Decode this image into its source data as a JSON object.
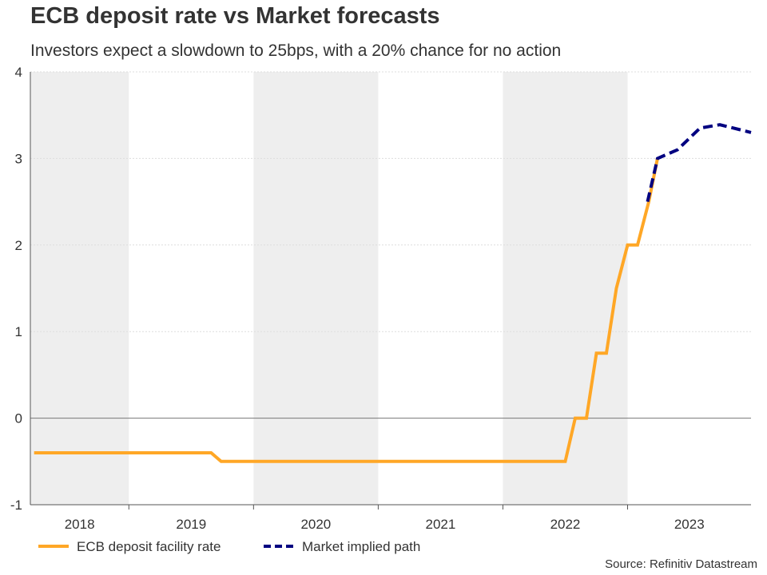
{
  "chart_data": {
    "type": "line",
    "title": "ECB deposit rate vs Market forecasts",
    "subtitle": "Investors expect a slowdown to 25bps, with a 20% chance for no action",
    "source": "Source: Refinitiv Datastream",
    "xlabel": "",
    "ylabel": "",
    "xlim": [
      2018.21,
      2023.99
    ],
    "ylim": [
      -1,
      4
    ],
    "yticks": [
      -1,
      0,
      1,
      2,
      3,
      4
    ],
    "year_labels": [
      "2018",
      "2019",
      "2020",
      "2021",
      "2022",
      "2023"
    ],
    "grid": true,
    "legend_placement": "bottom-left",
    "series": [
      {
        "name": "ECB deposit facility rate",
        "color": "#FFA726",
        "style": "solid",
        "x": [
          2018.24,
          2019.66,
          2019.74,
          2022.5,
          2022.58,
          2022.67,
          2022.75,
          2022.83,
          2022.91,
          2023.0,
          2023.08,
          2023.17,
          2023.24
        ],
        "y": [
          -0.4,
          -0.4,
          -0.5,
          -0.5,
          0,
          0,
          0.75,
          0.75,
          1.5,
          2,
          2,
          2.5,
          3
        ]
      },
      {
        "name": "Market implied path",
        "color": "#000080",
        "style": "dashed",
        "x": [
          2023.16,
          2023.24,
          2023.4,
          2023.58,
          2023.74,
          2023.99
        ],
        "y": [
          2.5,
          3,
          3.1,
          3.35,
          3.39,
          3.3
        ]
      }
    ]
  }
}
